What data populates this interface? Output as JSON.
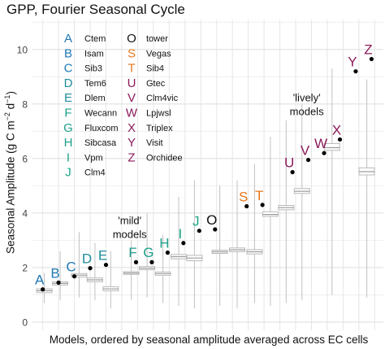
{
  "chart_data": {
    "type": "box_and_point",
    "title": "GPP, Fourier Seasonal Cycle",
    "xlabel": "Models, ordered by seasonal amplitude averaged across EC cells",
    "ylabel_parts": [
      "Seasonal Amplitude (g C m",
      "−2",
      " d",
      "−1",
      ")"
    ],
    "ylim": [
      -0.3,
      11.1
    ],
    "yticks": [
      "0",
      "2",
      "4",
      "6",
      "8",
      "10"
    ],
    "ytick_values": [
      0,
      2,
      4,
      6,
      8,
      10
    ],
    "grid": true,
    "legend": {
      "placement": "top-left",
      "column1": [
        {
          "letter": "A",
          "name": "Ctem",
          "color": "#1f78b4"
        },
        {
          "letter": "B",
          "name": "Isam",
          "color": "#1f78b4"
        },
        {
          "letter": "C",
          "name": "Sib3",
          "color": "#1f78b4"
        },
        {
          "letter": "D",
          "name": "Tem6",
          "color": "#1e8c9a"
        },
        {
          "letter": "E",
          "name": "Dlem",
          "color": "#1e8c9a"
        },
        {
          "letter": "F",
          "name": "Wecann",
          "color": "#1e9e8a"
        },
        {
          "letter": "G",
          "name": "Fluxcom",
          "color": "#1e9e8a"
        },
        {
          "letter": "H",
          "name": "Sibcasa",
          "color": "#1e9e8a"
        },
        {
          "letter": "I",
          "name": "Vpm",
          "color": "#1aa687"
        },
        {
          "letter": "J",
          "name": "Clm4",
          "color": "#1aa687"
        }
      ],
      "column2": [
        {
          "letter": "O",
          "name": "tower",
          "color": "#111111"
        },
        {
          "letter": "S",
          "name": "Vegas",
          "color": "#e6781e"
        },
        {
          "letter": "T",
          "name": "Sib4",
          "color": "#e6781e"
        },
        {
          "letter": "U",
          "name": "Gtec",
          "color": "#8b1a5a"
        },
        {
          "letter": "V",
          "name": "Clm4vic",
          "color": "#8b1a5a"
        },
        {
          "letter": "W",
          "name": "Lpjwsl",
          "color": "#8b1a5a"
        },
        {
          "letter": "X",
          "name": "Triplex",
          "color": "#8b1a5a"
        },
        {
          "letter": "Y",
          "name": "Visit",
          "color": "#8b1a5a"
        },
        {
          "letter": "Z",
          "name": "Orchidee",
          "color": "#8b1a5a"
        }
      ]
    },
    "annotations": [
      {
        "lines": [
          "'mild'",
          "models"
        ],
        "x": 6.5,
        "y": 3.6
      },
      {
        "lines": [
          "'lively'",
          "models"
        ],
        "x": 17.7,
        "y": 8.1
      }
    ],
    "points": [
      {
        "letter": "A",
        "x": 1,
        "value": 1.2,
        "color": "#1f78b4"
      },
      {
        "letter": "B",
        "x": 2,
        "value": 1.45,
        "color": "#1f78b4"
      },
      {
        "letter": "C",
        "x": 3,
        "value": 1.68,
        "color": "#1f78b4"
      },
      {
        "letter": "D",
        "x": 4,
        "value": 1.98,
        "color": "#1e8c9a"
      },
      {
        "letter": "E",
        "x": 5,
        "value": 2.1,
        "color": "#1e8c9a"
      },
      {
        "letter": "F",
        "x": 6.9,
        "value": 2.2,
        "color": "#1e9e8a"
      },
      {
        "letter": "G",
        "x": 7.9,
        "value": 2.2,
        "color": "#1e9e8a"
      },
      {
        "letter": "H",
        "x": 8.9,
        "value": 2.55,
        "color": "#1e9e8a"
      },
      {
        "letter": "I",
        "x": 9.9,
        "value": 2.9,
        "color": "#1aa687"
      },
      {
        "letter": "J",
        "x": 10.9,
        "value": 3.35,
        "color": "#1aa687"
      },
      {
        "letter": "O",
        "x": 11.9,
        "value": 3.4,
        "color": "#111111"
      },
      {
        "letter": "S",
        "x": 13.9,
        "value": 4.25,
        "color": "#e6781e"
      },
      {
        "letter": "T",
        "x": 14.9,
        "value": 4.3,
        "color": "#e6781e"
      },
      {
        "letter": "U",
        "x": 16.8,
        "value": 5.5,
        "color": "#8b1a5a"
      },
      {
        "letter": "V",
        "x": 17.8,
        "value": 5.95,
        "color": "#8b1a5a"
      },
      {
        "letter": "W",
        "x": 18.8,
        "value": 6.2,
        "color": "#8b1a5a"
      },
      {
        "letter": "X",
        "x": 19.8,
        "value": 6.7,
        "color": "#8b1a5a"
      },
      {
        "letter": "Y",
        "x": 20.8,
        "value": 9.2,
        "color": "#8b1a5a"
      },
      {
        "letter": "Z",
        "x": 21.8,
        "value": 9.65,
        "color": "#8b1a5a"
      }
    ],
    "boxes": [
      {
        "x": 1.1,
        "median": 1.15,
        "q1": 1.08,
        "q3": 1.22,
        "whisker_low": 0.7,
        "whisker_high": 1.8
      },
      {
        "x": 2.1,
        "median": 1.42,
        "q1": 1.36,
        "q3": 1.48,
        "whisker_low": 0.8,
        "whisker_high": 2.6
      },
      {
        "x": 3.3,
        "median": 1.72,
        "q1": 1.65,
        "q3": 1.78,
        "whisker_low": 0.9,
        "whisker_high": 3.3
      },
      {
        "x": 4.3,
        "median": 1.55,
        "q1": 1.48,
        "q3": 1.62,
        "whisker_low": 0.8,
        "whisker_high": 2.9
      },
      {
        "x": 5.3,
        "median": 1.22,
        "q1": 1.15,
        "q3": 1.3,
        "whisker_low": 0.5,
        "whisker_high": 2.6
      },
      {
        "x": 6.6,
        "median": 1.8,
        "q1": 1.75,
        "q3": 1.85,
        "whisker_low": 0.8,
        "whisker_high": 3.0
      },
      {
        "x": 7.6,
        "median": 1.98,
        "q1": 1.92,
        "q3": 2.04,
        "whisker_low": 0.9,
        "whisker_high": 4.0
      },
      {
        "x": 8.6,
        "median": 1.78,
        "q1": 1.72,
        "q3": 1.84,
        "whisker_low": 0.7,
        "whisker_high": 3.2
      },
      {
        "x": 9.6,
        "median": 2.4,
        "q1": 2.32,
        "q3": 2.48,
        "whisker_low": 0.6,
        "whisker_high": 4.6
      },
      {
        "x": 10.6,
        "median": 2.35,
        "q1": 2.25,
        "q3": 2.45,
        "whisker_low": 0.5,
        "whisker_high": 5.2
      },
      {
        "x": 12.2,
        "median": 2.58,
        "q1": 2.52,
        "q3": 2.64,
        "whisker_low": 0.6,
        "whisker_high": 5.0
      },
      {
        "x": 13.3,
        "median": 2.65,
        "q1": 2.58,
        "q3": 2.72,
        "whisker_low": 0.5,
        "whisker_high": 5.2
      },
      {
        "x": 14.4,
        "median": 2.58,
        "q1": 2.5,
        "q3": 2.66,
        "whisker_low": 0.7,
        "whisker_high": 5.8
      },
      {
        "x": 15.4,
        "median": 3.95,
        "q1": 3.88,
        "q3": 4.05,
        "whisker_low": 0.6,
        "whisker_high": 6.8
      },
      {
        "x": 16.4,
        "median": 4.2,
        "q1": 4.12,
        "q3": 4.28,
        "whisker_low": 0.7,
        "whisker_high": 7.4
      },
      {
        "x": 17.4,
        "median": 4.8,
        "q1": 4.72,
        "q3": 4.9,
        "whisker_low": 0.8,
        "whisker_high": 8.0
      },
      {
        "x": 19.3,
        "median": 6.4,
        "q1": 6.3,
        "q3": 6.55,
        "whisker_low": 1.0,
        "whisker_high": 9.3
      },
      {
        "x": 21.5,
        "median": 5.52,
        "q1": 5.4,
        "q3": 5.66,
        "whisker_low": 0.9,
        "whisker_high": 8.9
      }
    ]
  }
}
